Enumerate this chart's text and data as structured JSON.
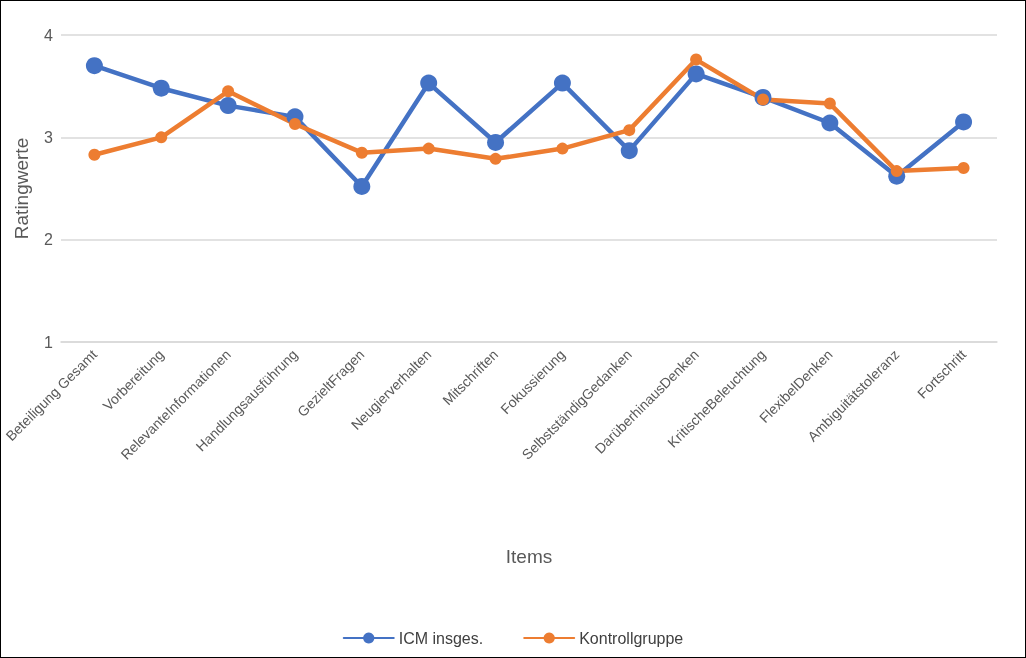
{
  "chart_data": {
    "type": "line",
    "xlabel": "Items",
    "ylabel": "Ratingwerte",
    "categories": [
      "Beteiligung Gesamt",
      "Vorbereitung",
      "RelevanteInformationen",
      "Handlungsausführung",
      "GezieltFragen",
      "Neugierverhalten",
      "Mitschriften",
      "Fokussierung",
      "SelbstständigGedanken",
      "DarüberhinausDenken",
      "KritischeBeleuchtung",
      "FlexibelDenken",
      "Ambiguitätstoleranz",
      "Fortschritt"
    ],
    "series": [
      {
        "name": "ICM insges.",
        "color": "#4472c4",
        "values": [
          3.7,
          3.48,
          3.31,
          3.2,
          2.52,
          3.53,
          2.95,
          3.53,
          2.87,
          3.62,
          3.39,
          3.14,
          2.62,
          3.15
        ]
      },
      {
        "name": "Kontrollgruppe",
        "color": "#ed7d31",
        "values": [
          2.83,
          3.0,
          3.45,
          3.13,
          2.85,
          2.89,
          2.79,
          2.89,
          3.07,
          3.76,
          3.37,
          3.33,
          2.67,
          2.7
        ]
      }
    ],
    "ylim": [
      1,
      4
    ],
    "yticks": [
      1,
      2,
      3,
      4
    ],
    "grid": "y",
    "legend": "bottom",
    "marker": "circle",
    "line_style": "solid"
  }
}
